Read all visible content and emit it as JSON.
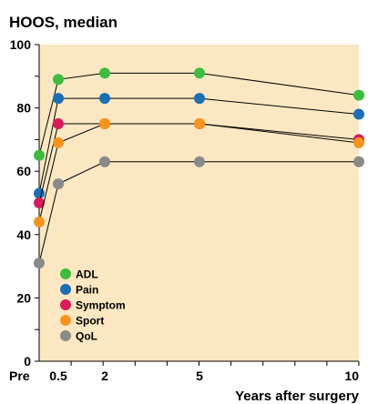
{
  "chart_data": {
    "type": "line",
    "title": "HOOS, median",
    "xlabel": "Years after surgery",
    "ylabel": "",
    "x": [
      0,
      0.5,
      2,
      5,
      10
    ],
    "x_tick_labels": [
      "Pre",
      "0.5",
      "2",
      "5",
      "10"
    ],
    "y_ticks": [
      0,
      20,
      40,
      60,
      80,
      100
    ],
    "ylim": [
      0,
      100
    ],
    "background": "#fbe8c2",
    "line_color": "#000000",
    "legend_position": "bottom-left",
    "series": [
      {
        "name": "ADL",
        "color": "#3dbd3d",
        "values": [
          65,
          89,
          91,
          91,
          84
        ]
      },
      {
        "name": "Pain",
        "color": "#1a6fb5",
        "values": [
          53,
          83,
          83,
          83,
          78
        ]
      },
      {
        "name": "Symptom",
        "color": "#d81b5c",
        "values": [
          50,
          75,
          75,
          75,
          70
        ]
      },
      {
        "name": "Sport",
        "color": "#f7941d",
        "values": [
          44,
          69,
          75,
          75,
          69
        ]
      },
      {
        "name": "QoL",
        "color": "#8a8a8a",
        "values": [
          31,
          56,
          63,
          63,
          63
        ]
      }
    ]
  }
}
